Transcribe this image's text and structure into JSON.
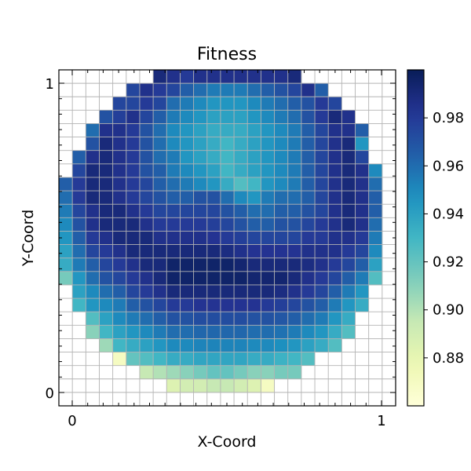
{
  "chart_data": {
    "type": "heatmap",
    "title": "Fitness",
    "xlabel": "X-Coord",
    "ylabel": "Y-Coord",
    "x_ticks": [
      "0",
      "1"
    ],
    "y_ticks": [
      "0",
      "1"
    ],
    "grid": true,
    "grid_size": 25,
    "region": "circular wafer",
    "colormap": "YlGnBu",
    "colorbar": {
      "min": 0.86,
      "max": 1.0,
      "ticks": [
        "0.88",
        "0.90",
        "0.92",
        "0.94",
        "0.96",
        "0.98"
      ]
    },
    "rows_top_to_bottom": [
      [
        null,
        null,
        null,
        null,
        null,
        null,
        null,
        0.99,
        0.985,
        0.98,
        0.985,
        0.985,
        0.985,
        0.985,
        0.985,
        0.985,
        0.985,
        0.99,
        null,
        null,
        null,
        null,
        null,
        null,
        null
      ],
      [
        null,
        null,
        null,
        null,
        null,
        0.975,
        0.985,
        0.98,
        0.975,
        0.965,
        0.96,
        0.955,
        0.955,
        0.955,
        0.96,
        0.965,
        0.97,
        0.975,
        0.985,
        0.965,
        null,
        null,
        null,
        null,
        null
      ],
      [
        null,
        null,
        null,
        null,
        0.975,
        0.975,
        0.98,
        0.975,
        0.96,
        0.955,
        0.95,
        0.945,
        0.945,
        0.945,
        0.95,
        0.955,
        0.96,
        0.965,
        0.97,
        0.98,
        0.975,
        null,
        null,
        null,
        null
      ],
      [
        null,
        null,
        null,
        0.97,
        0.978,
        0.985,
        0.975,
        0.965,
        0.955,
        0.95,
        0.945,
        0.94,
        0.94,
        0.94,
        0.945,
        0.95,
        0.955,
        0.96,
        0.97,
        0.98,
        0.99,
        0.985,
        null,
        null,
        null
      ],
      [
        null,
        null,
        0.96,
        0.985,
        0.985,
        0.98,
        0.97,
        0.96,
        0.95,
        0.945,
        0.94,
        0.935,
        0.935,
        0.935,
        0.94,
        0.945,
        0.95,
        0.955,
        0.965,
        0.975,
        0.985,
        0.985,
        0.965,
        null,
        null
      ],
      [
        null,
        null,
        0.97,
        0.99,
        0.985,
        0.98,
        0.97,
        0.96,
        0.95,
        0.945,
        0.94,
        0.935,
        0.93,
        0.935,
        0.94,
        0.945,
        0.95,
        0.955,
        0.965,
        0.975,
        0.985,
        0.99,
        0.945,
        null,
        null
      ],
      [
        null,
        0.965,
        0.985,
        0.99,
        0.985,
        0.98,
        0.97,
        0.96,
        0.955,
        0.945,
        0.94,
        0.935,
        0.93,
        0.935,
        0.94,
        0.945,
        0.95,
        0.955,
        0.965,
        0.975,
        0.985,
        0.99,
        0.975,
        null,
        null
      ],
      [
        null,
        0.975,
        0.99,
        0.99,
        0.985,
        0.98,
        0.97,
        0.965,
        0.955,
        0.95,
        0.945,
        0.94,
        0.93,
        0.935,
        0.94,
        0.945,
        0.95,
        0.955,
        0.965,
        0.975,
        0.985,
        0.99,
        0.985,
        0.95,
        null
      ],
      [
        0.965,
        0.98,
        0.99,
        0.99,
        0.985,
        0.98,
        0.975,
        0.965,
        0.96,
        0.955,
        0.95,
        0.945,
        0.935,
        0.925,
        0.93,
        0.945,
        0.95,
        0.955,
        0.965,
        0.975,
        0.985,
        0.99,
        0.985,
        0.96,
        null
      ],
      [
        0.96,
        0.98,
        0.99,
        0.99,
        0.985,
        0.98,
        0.975,
        0.97,
        0.965,
        0.965,
        0.97,
        0.97,
        0.96,
        0.95,
        0.945,
        0.955,
        0.96,
        0.96,
        0.965,
        0.975,
        0.985,
        0.99,
        0.985,
        0.965,
        null
      ],
      [
        0.955,
        0.975,
        0.985,
        0.99,
        0.99,
        0.985,
        0.98,
        0.975,
        0.975,
        0.975,
        0.975,
        0.975,
        0.97,
        0.965,
        0.96,
        0.96,
        0.965,
        0.965,
        0.97,
        0.975,
        0.985,
        0.99,
        0.985,
        0.965,
        null
      ],
      [
        0.95,
        0.97,
        0.985,
        0.99,
        0.99,
        0.99,
        0.985,
        0.98,
        0.98,
        0.98,
        0.98,
        0.978,
        0.975,
        0.97,
        0.965,
        0.965,
        0.97,
        0.97,
        0.975,
        0.98,
        0.985,
        0.99,
        0.985,
        0.96,
        null
      ],
      [
        0.945,
        0.965,
        0.98,
        0.985,
        0.99,
        0.99,
        0.99,
        0.985,
        0.985,
        0.985,
        0.985,
        0.983,
        0.98,
        0.978,
        0.975,
        0.975,
        0.975,
        0.975,
        0.98,
        0.98,
        0.985,
        0.985,
        0.98,
        0.955,
        null
      ],
      [
        0.94,
        0.96,
        0.975,
        0.98,
        0.985,
        0.99,
        0.99,
        0.99,
        0.99,
        0.99,
        0.99,
        0.99,
        0.988,
        0.985,
        0.983,
        0.983,
        0.983,
        0.983,
        0.985,
        0.985,
        0.985,
        0.98,
        0.975,
        0.95,
        null
      ],
      [
        0.935,
        0.955,
        0.965,
        0.975,
        0.98,
        0.985,
        0.99,
        0.99,
        0.995,
        0.995,
        0.995,
        0.995,
        0.995,
        0.993,
        0.99,
        0.99,
        0.99,
        0.99,
        0.988,
        0.985,
        0.98,
        0.975,
        0.965,
        0.94,
        null
      ],
      [
        0.915,
        0.945,
        0.96,
        0.97,
        0.975,
        0.98,
        0.985,
        0.99,
        0.995,
        0.995,
        0.995,
        0.995,
        0.995,
        0.995,
        0.993,
        0.993,
        0.993,
        0.99,
        0.985,
        0.98,
        0.975,
        0.965,
        0.955,
        0.925,
        null
      ],
      [
        null,
        0.94,
        0.95,
        0.96,
        0.965,
        0.975,
        0.98,
        0.985,
        0.99,
        0.99,
        0.99,
        0.99,
        0.99,
        0.99,
        0.99,
        0.99,
        0.988,
        0.985,
        0.98,
        0.975,
        0.965,
        0.955,
        0.945,
        null,
        null
      ],
      [
        null,
        0.93,
        0.945,
        0.95,
        0.955,
        0.965,
        0.97,
        0.975,
        0.98,
        0.98,
        0.983,
        0.983,
        0.983,
        0.983,
        0.983,
        0.98,
        0.978,
        0.975,
        0.97,
        0.965,
        0.955,
        0.945,
        0.935,
        null,
        null
      ],
      [
        null,
        null,
        0.925,
        0.94,
        0.95,
        0.955,
        0.96,
        0.965,
        0.97,
        0.97,
        0.972,
        0.972,
        0.972,
        0.972,
        0.97,
        0.97,
        0.968,
        0.965,
        0.96,
        0.955,
        0.945,
        0.935,
        null,
        null,
        null
      ],
      [
        null,
        null,
        0.91,
        0.93,
        0.94,
        0.945,
        0.95,
        0.955,
        0.96,
        0.96,
        0.962,
        0.962,
        0.962,
        0.962,
        0.96,
        0.96,
        0.958,
        0.955,
        0.95,
        0.945,
        0.935,
        0.925,
        null,
        null,
        null
      ],
      [
        null,
        null,
        null,
        0.905,
        0.93,
        0.935,
        0.94,
        0.945,
        0.95,
        0.95,
        0.952,
        0.952,
        0.952,
        0.952,
        0.95,
        0.95,
        0.948,
        0.945,
        0.94,
        0.935,
        0.925,
        null,
        null,
        null,
        null
      ],
      [
        null,
        null,
        null,
        null,
        0.87,
        0.92,
        0.925,
        0.93,
        0.935,
        0.935,
        0.938,
        0.938,
        0.938,
        0.938,
        0.935,
        0.935,
        0.932,
        0.93,
        0.925,
        null,
        null,
        null,
        null,
        null,
        null
      ],
      [
        null,
        null,
        null,
        null,
        null,
        null,
        0.895,
        0.9,
        0.905,
        0.91,
        0.915,
        0.92,
        0.92,
        0.915,
        0.91,
        0.91,
        0.915,
        0.915,
        null,
        null,
        null,
        null,
        null,
        null,
        null
      ],
      [
        null,
        null,
        null,
        null,
        null,
        null,
        null,
        null,
        0.885,
        0.89,
        0.89,
        0.895,
        0.895,
        0.89,
        0.885,
        0.87,
        null,
        null,
        null,
        null,
        null,
        null,
        null,
        null,
        null
      ],
      [
        null,
        null,
        null,
        null,
        null,
        null,
        null,
        null,
        null,
        null,
        null,
        null,
        null,
        null,
        null,
        null,
        null,
        null,
        null,
        null,
        null,
        null,
        null,
        null,
        null
      ]
    ]
  }
}
